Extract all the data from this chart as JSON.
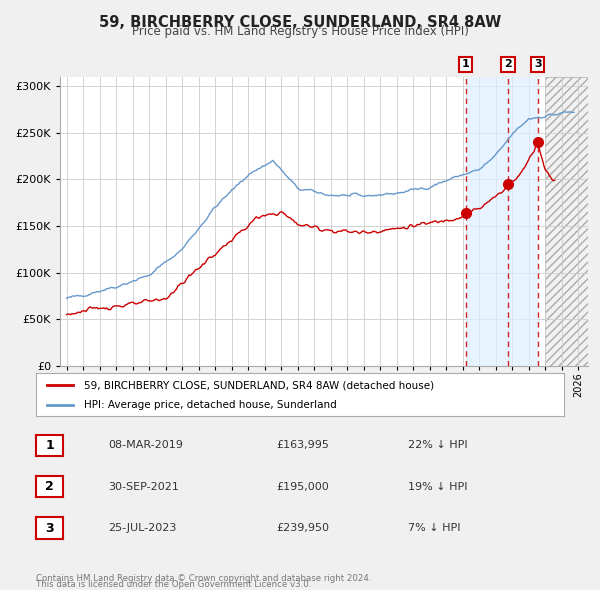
{
  "title": "59, BIRCHBERRY CLOSE, SUNDERLAND, SR4 8AW",
  "subtitle": "Price paid vs. HM Land Registry's House Price Index (HPI)",
  "legend_label_red": "59, BIRCHBERRY CLOSE, SUNDERLAND, SR4 8AW (detached house)",
  "legend_label_blue": "HPI: Average price, detached house, Sunderland",
  "transactions": [
    {
      "label": "1",
      "date_x": 2019.19,
      "price": 163995,
      "display_date": "08-MAR-2019",
      "display_price": "£163,995",
      "display_pct": "22% ↓ HPI"
    },
    {
      "label": "2",
      "date_x": 2021.75,
      "price": 195000,
      "display_date": "30-SEP-2021",
      "display_price": "£195,000",
      "display_pct": "19% ↓ HPI"
    },
    {
      "label": "3",
      "date_x": 2023.56,
      "price": 239950,
      "display_date": "25-JUL-2023",
      "display_price": "£239,950",
      "display_pct": "7% ↓ HPI"
    }
  ],
  "footer_line1": "Contains HM Land Registry data © Crown copyright and database right 2024.",
  "footer_line2": "This data is licensed under the Open Government Licence v3.0.",
  "red_color": "#cc0000",
  "blue_color": "#6699cc",
  "bg_color": "#f0f0f0",
  "plot_bg": "#ffffff",
  "grid_color": "#cccccc",
  "hatch_start": 2024.0,
  "blue_shade_start": 2019.19,
  "blue_shade_end": 2023.56,
  "xlim_left": 1994.6,
  "xlim_right": 2026.6,
  "ylim": [
    0,
    310000
  ],
  "yticks": [
    0,
    50000,
    100000,
    150000,
    200000,
    250000,
    300000
  ]
}
